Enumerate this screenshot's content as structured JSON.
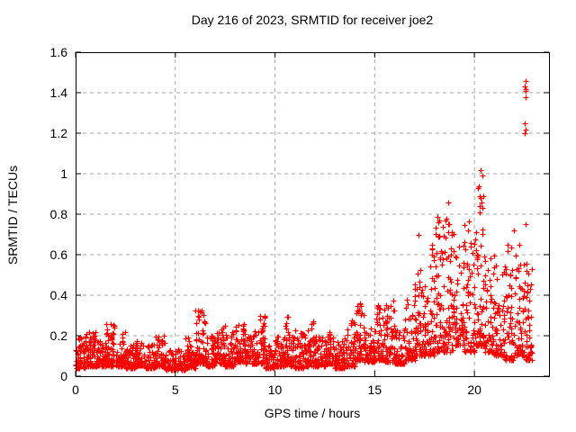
{
  "window": {
    "background_color": "#ffffff"
  },
  "chart_data": {
    "type": "scatter",
    "title": "Day 216 of 2023, SRMTID for receiver joe2",
    "xlabel": "GPS time / hours",
    "ylabel": "SRMTID / TECUs",
    "xlim": [
      0,
      23.74
    ],
    "ylim": [
      0,
      1.6
    ],
    "xticks": [
      {
        "value": 0,
        "label": "0"
      },
      {
        "value": 5,
        "label": "5"
      },
      {
        "value": 10,
        "label": "10"
      },
      {
        "value": 15,
        "label": "15"
      },
      {
        "value": 20,
        "label": "20"
      }
    ],
    "yticks": [
      {
        "value": 0,
        "label": "0"
      },
      {
        "value": 0.2,
        "label": "0.2"
      },
      {
        "value": 0.4,
        "label": "0.4"
      },
      {
        "value": 0.6,
        "label": "0.6"
      },
      {
        "value": 0.8,
        "label": "0.8"
      },
      {
        "value": 1,
        "label": "1"
      },
      {
        "value": 1.2,
        "label": "1.2"
      },
      {
        "value": 1.4,
        "label": "1.4"
      },
      {
        "value": 1.6,
        "label": "1.6"
      }
    ],
    "grid": true,
    "grid_color": "#a6a6a6",
    "grid_style": "dashed",
    "legend_position": "none",
    "marker": {
      "shape": "plus",
      "color": "#ff0000",
      "size": 7
    },
    "series_name": "SRMTID",
    "outlier_points": [
      [
        17.2,
        0.7
      ],
      [
        18.7,
        0.86
      ],
      [
        20.18,
        0.93
      ],
      [
        20.25,
        0.81
      ],
      [
        20.28,
        0.84
      ],
      [
        20.3,
        0.88
      ],
      [
        20.32,
        1.02
      ],
      [
        20.35,
        0.86
      ],
      [
        20.4,
        0.83
      ],
      [
        20.42,
        0.99
      ],
      [
        21.66,
        0.62
      ],
      [
        21.97,
        0.72
      ],
      [
        22.24,
        0.65
      ],
      [
        22.52,
        1.43
      ],
      [
        22.54,
        1.25
      ],
      [
        22.54,
        1.2
      ],
      [
        22.55,
        1.42
      ],
      [
        22.55,
        1.22
      ],
      [
        22.56,
        1.41
      ],
      [
        22.57,
        1.38
      ],
      [
        22.58,
        1.46
      ],
      [
        22.58,
        0.75
      ]
    ],
    "density_envelope": {
      "description": "Dense band of ~2600 samples; each bin is [hour_start, hour_end, y_min, y_max, point_count], points concentrated toward y_min",
      "y_distribution_exponent": 2.2,
      "seed": 20230216,
      "bins": [
        [
          0.0,
          0.5,
          0.04,
          0.2,
          60
        ],
        [
          0.5,
          1.0,
          0.05,
          0.23,
          60
        ],
        [
          1.0,
          1.5,
          0.05,
          0.18,
          55
        ],
        [
          1.5,
          2.0,
          0.05,
          0.26,
          60
        ],
        [
          2.0,
          2.5,
          0.05,
          0.22,
          55
        ],
        [
          2.5,
          3.0,
          0.04,
          0.16,
          55
        ],
        [
          3.0,
          3.5,
          0.05,
          0.18,
          55
        ],
        [
          3.5,
          4.0,
          0.04,
          0.16,
          55
        ],
        [
          4.0,
          4.5,
          0.05,
          0.22,
          55
        ],
        [
          4.5,
          5.0,
          0.03,
          0.13,
          50
        ],
        [
          5.0,
          5.5,
          0.03,
          0.14,
          50
        ],
        [
          5.5,
          6.0,
          0.04,
          0.2,
          55
        ],
        [
          6.0,
          6.5,
          0.06,
          0.33,
          65
        ],
        [
          6.5,
          7.0,
          0.05,
          0.2,
          55
        ],
        [
          7.0,
          7.5,
          0.06,
          0.25,
          55
        ],
        [
          7.5,
          8.0,
          0.05,
          0.22,
          55
        ],
        [
          8.0,
          8.5,
          0.07,
          0.26,
          60
        ],
        [
          8.5,
          9.0,
          0.06,
          0.2,
          55
        ],
        [
          9.0,
          9.5,
          0.06,
          0.3,
          60
        ],
        [
          9.5,
          10.0,
          0.04,
          0.15,
          50
        ],
        [
          10.0,
          10.5,
          0.05,
          0.2,
          55
        ],
        [
          10.5,
          11.0,
          0.05,
          0.3,
          60
        ],
        [
          11.0,
          11.5,
          0.04,
          0.22,
          55
        ],
        [
          11.5,
          12.0,
          0.05,
          0.27,
          55
        ],
        [
          12.0,
          12.5,
          0.05,
          0.2,
          55
        ],
        [
          12.5,
          13.0,
          0.06,
          0.22,
          60
        ],
        [
          13.0,
          13.5,
          0.04,
          0.18,
          55
        ],
        [
          13.5,
          14.0,
          0.05,
          0.28,
          55
        ],
        [
          14.0,
          14.5,
          0.08,
          0.36,
          65
        ],
        [
          14.5,
          15.0,
          0.07,
          0.24,
          55
        ],
        [
          15.0,
          15.5,
          0.08,
          0.35,
          60
        ],
        [
          15.5,
          16.0,
          0.07,
          0.38,
          60
        ],
        [
          16.0,
          16.5,
          0.06,
          0.25,
          55
        ],
        [
          16.5,
          17.0,
          0.08,
          0.38,
          55
        ],
        [
          17.0,
          17.5,
          0.1,
          0.55,
          60
        ],
        [
          17.5,
          18.0,
          0.1,
          0.68,
          60
        ],
        [
          18.0,
          18.5,
          0.12,
          0.79,
          65
        ],
        [
          18.5,
          19.0,
          0.12,
          0.78,
          65
        ],
        [
          19.0,
          19.5,
          0.15,
          0.68,
          55
        ],
        [
          19.5,
          20.0,
          0.12,
          0.78,
          60
        ],
        [
          20.0,
          20.5,
          0.15,
          0.95,
          65
        ],
        [
          20.5,
          21.0,
          0.12,
          0.62,
          55
        ],
        [
          21.0,
          21.5,
          0.1,
          0.55,
          55
        ],
        [
          21.5,
          22.0,
          0.08,
          0.66,
          55
        ],
        [
          22.0,
          22.5,
          0.1,
          0.62,
          55
        ],
        [
          22.5,
          22.9,
          0.08,
          0.62,
          50
        ]
      ]
    }
  }
}
